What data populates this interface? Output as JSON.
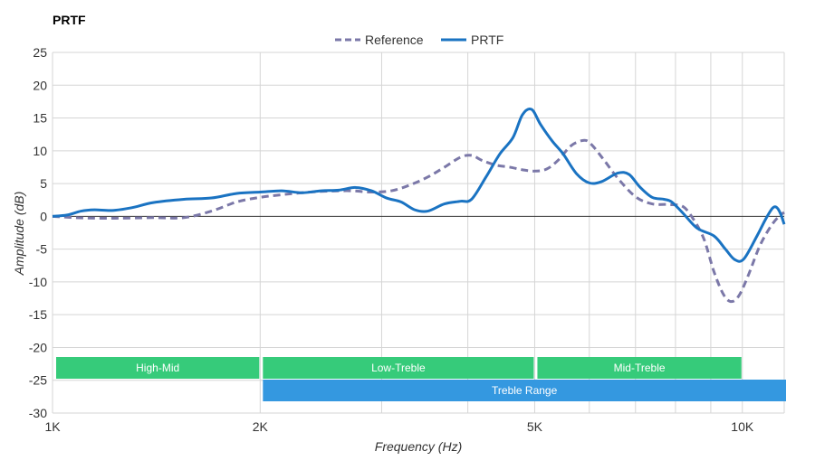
{
  "chart_data": {
    "type": "line",
    "title": "PRTF",
    "xlabel": "Frequency (Hz)",
    "ylabel": "Amplitude (dB)",
    "x_scale": "log",
    "xlim": [
      1000,
      11500
    ],
    "ylim": [
      -30,
      25
    ],
    "x_ticks": [
      {
        "value": 1000,
        "label": "1K"
      },
      {
        "value": 2000,
        "label": "2K"
      },
      {
        "value": 5000,
        "label": "5K"
      },
      {
        "value": 10000,
        "label": "10K"
      }
    ],
    "x_minor_gridlines": [
      3000,
      4000,
      6000,
      7000,
      8000,
      9000
    ],
    "y_ticks": [
      25,
      20,
      15,
      10,
      5,
      0,
      -5,
      -10,
      -15,
      -20,
      -25,
      -30
    ],
    "grid": true,
    "legend": "top-center",
    "series": [
      {
        "name": "Reference",
        "style": "dashed",
        "color": "#7b78a8",
        "points": [
          [
            1000,
            0
          ],
          [
            1080,
            -0.2
          ],
          [
            1200,
            -0.3
          ],
          [
            1400,
            -0.2
          ],
          [
            1550,
            -0.2
          ],
          [
            1700,
            0.8
          ],
          [
            1850,
            2.2
          ],
          [
            2000,
            2.9
          ],
          [
            2150,
            3.3
          ],
          [
            2300,
            3.6
          ],
          [
            2450,
            3.8
          ],
          [
            2700,
            3.9
          ],
          [
            2900,
            3.7
          ],
          [
            3100,
            3.9
          ],
          [
            3300,
            4.8
          ],
          [
            3500,
            6.0
          ],
          [
            3700,
            7.5
          ],
          [
            3900,
            9.0
          ],
          [
            4050,
            9.3
          ],
          [
            4200,
            8.5
          ],
          [
            4400,
            7.8
          ],
          [
            4600,
            7.5
          ],
          [
            4800,
            7.1
          ],
          [
            5000,
            6.9
          ],
          [
            5200,
            7.2
          ],
          [
            5400,
            8.5
          ],
          [
            5650,
            10.8
          ],
          [
            5900,
            11.6
          ],
          [
            6050,
            10.9
          ],
          [
            6300,
            8.6
          ],
          [
            6600,
            5.8
          ],
          [
            7000,
            3.0
          ],
          [
            7400,
            1.9
          ],
          [
            7800,
            1.8
          ],
          [
            8200,
            1.5
          ],
          [
            8500,
            -0.5
          ],
          [
            8800,
            -3.5
          ],
          [
            9100,
            -8.5
          ],
          [
            9400,
            -12.0
          ],
          [
            9650,
            -13.0
          ],
          [
            9900,
            -12.0
          ],
          [
            10200,
            -9.0
          ],
          [
            10600,
            -4.5
          ],
          [
            11000,
            -1.5
          ],
          [
            11300,
            0
          ],
          [
            11500,
            0.6
          ]
        ]
      },
      {
        "name": "PRTF",
        "style": "solid",
        "color": "#1a73c2",
        "points": [
          [
            1000,
            0
          ],
          [
            1050,
            0.2
          ],
          [
            1100,
            0.8
          ],
          [
            1150,
            1.0
          ],
          [
            1220,
            0.9
          ],
          [
            1300,
            1.3
          ],
          [
            1400,
            2.1
          ],
          [
            1550,
            2.6
          ],
          [
            1700,
            2.8
          ],
          [
            1850,
            3.5
          ],
          [
            2000,
            3.7
          ],
          [
            2150,
            3.9
          ],
          [
            2300,
            3.6
          ],
          [
            2450,
            3.9
          ],
          [
            2600,
            4.0
          ],
          [
            2750,
            4.4
          ],
          [
            2900,
            3.9
          ],
          [
            3050,
            2.8
          ],
          [
            3200,
            2.2
          ],
          [
            3350,
            1.0
          ],
          [
            3500,
            0.8
          ],
          [
            3700,
            1.9
          ],
          [
            3900,
            2.3
          ],
          [
            4050,
            2.6
          ],
          [
            4250,
            6.0
          ],
          [
            4450,
            9.5
          ],
          [
            4650,
            12.0
          ],
          [
            4800,
            15.5
          ],
          [
            4950,
            16.3
          ],
          [
            5100,
            14.0
          ],
          [
            5300,
            11.5
          ],
          [
            5500,
            9.5
          ],
          [
            5750,
            6.5
          ],
          [
            6000,
            5.1
          ],
          [
            6250,
            5.3
          ],
          [
            6600,
            6.6
          ],
          [
            6850,
            6.4
          ],
          [
            7100,
            4.5
          ],
          [
            7400,
            2.9
          ],
          [
            7700,
            2.6
          ],
          [
            7900,
            2.2
          ],
          [
            8200,
            0.5
          ],
          [
            8600,
            -1.8
          ],
          [
            9100,
            -3.0
          ],
          [
            9450,
            -5.0
          ],
          [
            9750,
            -6.6
          ],
          [
            10050,
            -6.5
          ],
          [
            10500,
            -3.0
          ],
          [
            10800,
            -0.5
          ],
          [
            11050,
            1.2
          ],
          [
            11200,
            1.4
          ],
          [
            11350,
            0.5
          ],
          [
            11500,
            -1.2
          ]
        ]
      }
    ],
    "bands": [
      {
        "label": "High-Mid",
        "from": 1000,
        "to": 2000,
        "row": 1,
        "color": "#36cb7a"
      },
      {
        "label": "Low-Treble",
        "from": 2000,
        "to": 5000,
        "row": 1,
        "color": "#36cb7a"
      },
      {
        "label": "Mid-Treble",
        "from": 5000,
        "to": 10000,
        "row": 1,
        "color": "#36cb7a"
      },
      {
        "label": "Treble Range",
        "from": 2000,
        "to": 11500,
        "row": 2,
        "color": "#3498e0"
      }
    ],
    "colors": {
      "grid": "#d5d5d5",
      "zero_line": "#333333"
    }
  }
}
